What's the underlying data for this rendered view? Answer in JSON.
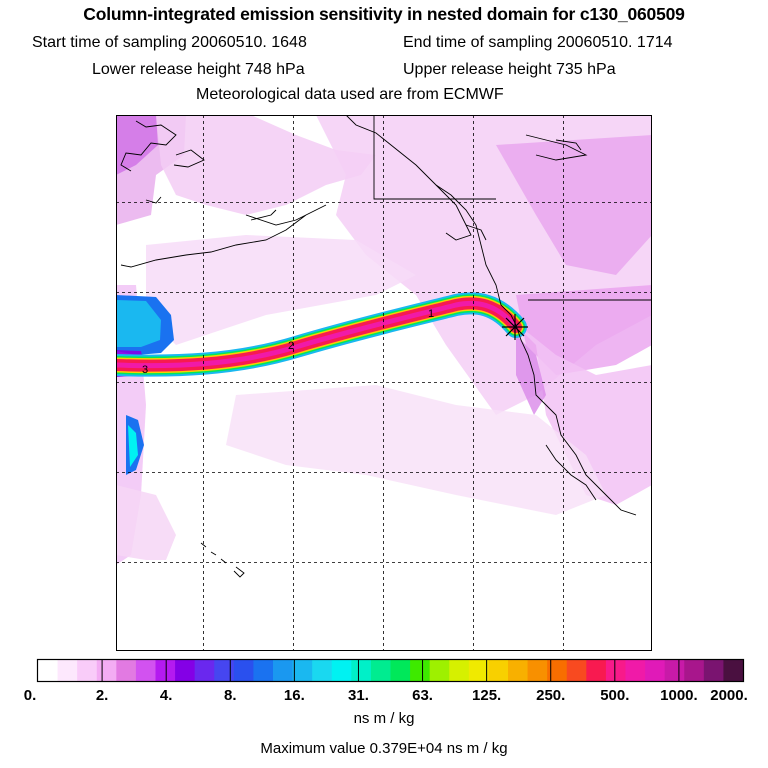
{
  "header": {
    "title": "Column-integrated emission sensitivity in nested domain for c130_060509",
    "start_label": "Start time of sampling 20060510.  1648",
    "end_label": "End time of sampling 20060510.  1714",
    "lower_label": "Lower release height  748 hPa",
    "upper_label": "Upper release height  735 hPa",
    "met_label": "Meteorological data used are from ECMWF"
  },
  "map": {
    "plume_markers": [
      "1",
      "2",
      "3"
    ],
    "release_marker_icon": "cross-star-marker"
  },
  "colorbar": {
    "tick_labels": [
      "0.",
      "2.",
      "4.",
      "8.",
      "16.",
      "31.",
      "63.",
      "125.",
      "250.",
      "500.",
      "1000.",
      "2000."
    ],
    "colors": [
      "#ffffff",
      "#fde8fd",
      "#f9ccf9",
      "#f3acf3",
      "#e27ae2",
      "#d252f0",
      "#b41af0",
      "#8400e6",
      "#6a28ee",
      "#4646f0",
      "#2a50ee",
      "#1a72f0",
      "#1a98f0",
      "#1ab8f0",
      "#1ad8f0",
      "#00f2f2",
      "#00f0c8",
      "#00ec90",
      "#00e85a",
      "#3eea00",
      "#9ef000",
      "#d6f000",
      "#f0ea00",
      "#f8d000",
      "#f8b000",
      "#f89000",
      "#f86e00",
      "#f84a20",
      "#f81a50",
      "#f81a8a",
      "#f01aa8",
      "#e01ab8",
      "#c81aa8",
      "#a8168c",
      "#7a1470",
      "#4a1040"
    ],
    "units": "ns m / kg",
    "max_value_text": "Maximum value  0.379E+04 ns m / kg"
  }
}
